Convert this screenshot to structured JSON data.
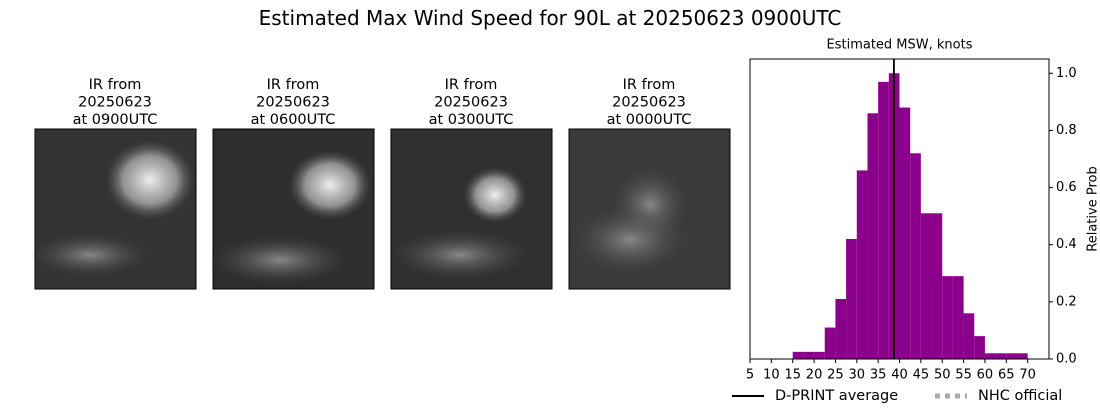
{
  "title": "Estimated Max Wind Speed for 90L at 20250623 0900UTC",
  "panels": [
    {
      "lines": [
        "IR from",
        "20250623",
        "at 0900UTC"
      ]
    },
    {
      "lines": [
        "IR from",
        "20250623",
        "at 0600UTC"
      ]
    },
    {
      "lines": [
        "IR from",
        "20250623",
        "at 0300UTC"
      ]
    },
    {
      "lines": [
        "IR from",
        "20250623",
        "at 0000UTC"
      ]
    }
  ],
  "chart_data": {
    "type": "histogram",
    "title": "Estimated MSW, knots",
    "ylabel": "Relative Prob",
    "color": "#8b008b",
    "bins": [
      15,
      17.5,
      20,
      22.5,
      25,
      27.5,
      30,
      32.5,
      35,
      37.5,
      40,
      42.5,
      45,
      47.5,
      50,
      52.5,
      55,
      57.5,
      60,
      62.5,
      65,
      67.5,
      70
    ],
    "values": [
      0.025,
      0.025,
      0.025,
      0.11,
      0.21,
      0.42,
      0.66,
      0.86,
      0.97,
      1.0,
      0.88,
      0.72,
      0.51,
      0.51,
      0.29,
      0.29,
      0.16,
      0.08,
      0.02,
      0.02,
      0.02,
      0.02
    ],
    "xlim": [
      5,
      75
    ],
    "ylim": [
      0,
      1.05
    ],
    "xticks": [
      5,
      10,
      15,
      20,
      25,
      30,
      35,
      40,
      45,
      50,
      55,
      60,
      65,
      70
    ],
    "yticks": [
      {
        "value": 0,
        "label": "0.0"
      },
      {
        "value": 0.2,
        "label": "0.2"
      },
      {
        "value": 0.4,
        "label": "0.4"
      },
      {
        "value": 0.6,
        "label": "0.6"
      },
      {
        "value": 0.8,
        "label": "0.8"
      },
      {
        "value": 1,
        "label": "1.0"
      }
    ],
    "average": {
      "name": "D-PRINT average",
      "value": 38.7,
      "color": "#000000"
    },
    "nhc_official": {
      "name": "NHC official",
      "color": "#aaaaaa"
    }
  }
}
